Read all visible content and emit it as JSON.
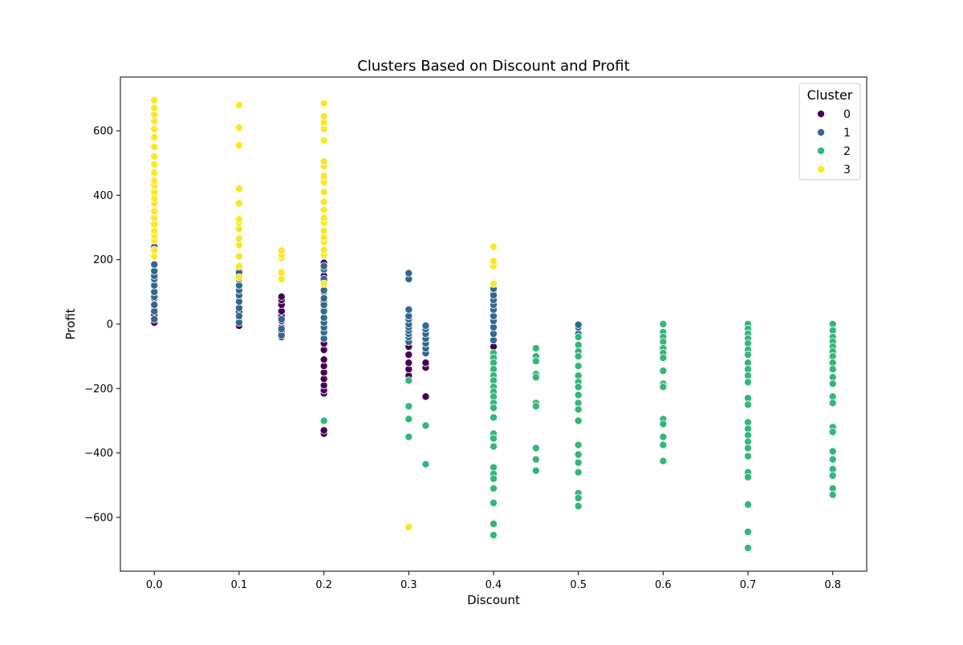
{
  "chart_data": {
    "type": "scatter",
    "title": "Clusters Based on Discount and Profit",
    "xlabel": "Discount",
    "ylabel": "Profit",
    "xlim": [
      -0.04,
      0.84
    ],
    "ylim": [
      -767,
      767
    ],
    "xticks": [
      {
        "value": 0.0,
        "label": "0.0"
      },
      {
        "value": 0.1,
        "label": "0.1"
      },
      {
        "value": 0.2,
        "label": "0.2"
      },
      {
        "value": 0.3,
        "label": "0.3"
      },
      {
        "value": 0.4,
        "label": "0.4"
      },
      {
        "value": 0.5,
        "label": "0.5"
      },
      {
        "value": 0.6,
        "label": "0.6"
      },
      {
        "value": 0.7,
        "label": "0.7"
      },
      {
        "value": 0.8,
        "label": "0.8"
      }
    ],
    "yticks": [
      {
        "value": 600,
        "label": "600"
      },
      {
        "value": 400,
        "label": "400"
      },
      {
        "value": 200,
        "label": "200"
      },
      {
        "value": 0,
        "label": "0"
      },
      {
        "value": -200,
        "label": "−200"
      },
      {
        "value": -400,
        "label": "−400"
      },
      {
        "value": -600,
        "label": "−600"
      }
    ],
    "grid": false,
    "legend": {
      "title": "Cluster",
      "position": "top-right"
    },
    "series": [
      {
        "name": "0",
        "color": "#440154",
        "points": [
          [
            0.0,
            5
          ],
          [
            0.0,
            15
          ],
          [
            0.0,
            30
          ],
          [
            0.0,
            45
          ],
          [
            0.0,
            60
          ],
          [
            0.0,
            80
          ],
          [
            0.0,
            100
          ],
          [
            0.0,
            125
          ],
          [
            0.0,
            140
          ],
          [
            0.1,
            -5
          ],
          [
            0.1,
            5
          ],
          [
            0.1,
            20
          ],
          [
            0.1,
            40
          ],
          [
            0.1,
            70
          ],
          [
            0.1,
            120
          ],
          [
            0.1,
            175
          ],
          [
            0.15,
            -40
          ],
          [
            0.15,
            -25
          ],
          [
            0.15,
            -10
          ],
          [
            0.15,
            10
          ],
          [
            0.15,
            25
          ],
          [
            0.15,
            40
          ],
          [
            0.15,
            60
          ],
          [
            0.15,
            75
          ],
          [
            0.15,
            85
          ],
          [
            0.2,
            -340
          ],
          [
            0.2,
            -330
          ],
          [
            0.2,
            -215
          ],
          [
            0.2,
            -205
          ],
          [
            0.2,
            -190
          ],
          [
            0.2,
            -170
          ],
          [
            0.2,
            -150
          ],
          [
            0.2,
            -130
          ],
          [
            0.2,
            -110
          ],
          [
            0.2,
            -80
          ],
          [
            0.2,
            -60
          ],
          [
            0.2,
            -40
          ],
          [
            0.2,
            -20
          ],
          [
            0.2,
            0
          ],
          [
            0.2,
            20
          ],
          [
            0.2,
            45
          ],
          [
            0.2,
            70
          ],
          [
            0.2,
            100
          ],
          [
            0.2,
            125
          ],
          [
            0.2,
            150
          ],
          [
            0.2,
            175
          ],
          [
            0.2,
            190
          ],
          [
            0.3,
            -160
          ],
          [
            0.3,
            -140
          ],
          [
            0.3,
            -120
          ],
          [
            0.3,
            -95
          ],
          [
            0.3,
            -70
          ],
          [
            0.32,
            -225
          ],
          [
            0.32,
            -135
          ],
          [
            0.32,
            -120
          ],
          [
            0.4,
            -70
          ],
          [
            0.4,
            95
          ]
        ]
      },
      {
        "name": "1",
        "color": "#31688e",
        "points": [
          [
            0.0,
            15
          ],
          [
            0.0,
            40
          ],
          [
            0.0,
            60
          ],
          [
            0.0,
            85
          ],
          [
            0.0,
            100
          ],
          [
            0.0,
            120
          ],
          [
            0.0,
            140
          ],
          [
            0.0,
            150
          ],
          [
            0.0,
            165
          ],
          [
            0.0,
            185
          ],
          [
            0.0,
            240
          ],
          [
            0.1,
            5
          ],
          [
            0.1,
            25
          ],
          [
            0.1,
            50
          ],
          [
            0.1,
            70
          ],
          [
            0.1,
            90
          ],
          [
            0.1,
            105
          ],
          [
            0.1,
            120
          ],
          [
            0.1,
            140
          ],
          [
            0.1,
            160
          ],
          [
            0.1,
            180
          ],
          [
            0.15,
            -35
          ],
          [
            0.15,
            -15
          ],
          [
            0.15,
            15
          ],
          [
            0.2,
            -45
          ],
          [
            0.2,
            -25
          ],
          [
            0.2,
            -10
          ],
          [
            0.2,
            5
          ],
          [
            0.2,
            20
          ],
          [
            0.2,
            40
          ],
          [
            0.2,
            60
          ],
          [
            0.2,
            80
          ],
          [
            0.2,
            105
          ],
          [
            0.2,
            140
          ],
          [
            0.2,
            170
          ],
          [
            0.2,
            180
          ],
          [
            0.3,
            -55
          ],
          [
            0.3,
            -40
          ],
          [
            0.3,
            -30
          ],
          [
            0.3,
            -20
          ],
          [
            0.3,
            -10
          ],
          [
            0.3,
            0
          ],
          [
            0.3,
            15
          ],
          [
            0.3,
            25
          ],
          [
            0.3,
            45
          ],
          [
            0.3,
            140
          ],
          [
            0.3,
            158
          ],
          [
            0.32,
            -90
          ],
          [
            0.32,
            -75
          ],
          [
            0.32,
            -60
          ],
          [
            0.32,
            -45
          ],
          [
            0.32,
            -30
          ],
          [
            0.32,
            -15
          ],
          [
            0.32,
            -5
          ],
          [
            0.4,
            -50
          ],
          [
            0.4,
            -30
          ],
          [
            0.4,
            -10
          ],
          [
            0.4,
            10
          ],
          [
            0.4,
            25
          ],
          [
            0.4,
            45
          ],
          [
            0.4,
            60
          ],
          [
            0.4,
            75
          ],
          [
            0.4,
            90
          ],
          [
            0.4,
            110
          ],
          [
            0.5,
            -30
          ],
          [
            0.5,
            -10
          ],
          [
            0.5,
            -2
          ]
        ]
      },
      {
        "name": "2",
        "color": "#35b779",
        "points": [
          [
            0.2,
            -300
          ],
          [
            0.3,
            -175
          ],
          [
            0.3,
            -255
          ],
          [
            0.3,
            -295
          ],
          [
            0.3,
            -350
          ],
          [
            0.32,
            -315
          ],
          [
            0.32,
            -435
          ],
          [
            0.4,
            -90
          ],
          [
            0.4,
            -105
          ],
          [
            0.4,
            -120
          ],
          [
            0.4,
            -140
          ],
          [
            0.4,
            -160
          ],
          [
            0.4,
            -175
          ],
          [
            0.4,
            -195
          ],
          [
            0.4,
            -210
          ],
          [
            0.4,
            -225
          ],
          [
            0.4,
            -245
          ],
          [
            0.4,
            -260
          ],
          [
            0.4,
            -290
          ],
          [
            0.4,
            -340
          ],
          [
            0.4,
            -355
          ],
          [
            0.4,
            -380
          ],
          [
            0.4,
            -445
          ],
          [
            0.4,
            -465
          ],
          [
            0.4,
            -480
          ],
          [
            0.4,
            -510
          ],
          [
            0.4,
            -555
          ],
          [
            0.4,
            -620
          ],
          [
            0.4,
            -655
          ],
          [
            0.45,
            -75
          ],
          [
            0.45,
            -100
          ],
          [
            0.45,
            -115
          ],
          [
            0.45,
            -155
          ],
          [
            0.45,
            -165
          ],
          [
            0.45,
            -245
          ],
          [
            0.45,
            -255
          ],
          [
            0.45,
            -385
          ],
          [
            0.45,
            -420
          ],
          [
            0.45,
            -455
          ],
          [
            0.5,
            -40
          ],
          [
            0.5,
            -65
          ],
          [
            0.5,
            -85
          ],
          [
            0.5,
            -100
          ],
          [
            0.5,
            -130
          ],
          [
            0.5,
            -160
          ],
          [
            0.5,
            -180
          ],
          [
            0.5,
            -195
          ],
          [
            0.5,
            -220
          ],
          [
            0.5,
            -245
          ],
          [
            0.5,
            -265
          ],
          [
            0.5,
            -300
          ],
          [
            0.5,
            -375
          ],
          [
            0.5,
            -405
          ],
          [
            0.5,
            -430
          ],
          [
            0.5,
            -460
          ],
          [
            0.5,
            -525
          ],
          [
            0.5,
            -540
          ],
          [
            0.5,
            -565
          ],
          [
            0.6,
            0
          ],
          [
            0.6,
            -25
          ],
          [
            0.6,
            -40
          ],
          [
            0.6,
            -55
          ],
          [
            0.6,
            -75
          ],
          [
            0.6,
            -90
          ],
          [
            0.6,
            -105
          ],
          [
            0.6,
            -145
          ],
          [
            0.6,
            -185
          ],
          [
            0.6,
            -195
          ],
          [
            0.6,
            -295
          ],
          [
            0.6,
            -310
          ],
          [
            0.6,
            -350
          ],
          [
            0.6,
            -375
          ],
          [
            0.6,
            -425
          ],
          [
            0.7,
            0
          ],
          [
            0.7,
            -15
          ],
          [
            0.7,
            -30
          ],
          [
            0.7,
            -45
          ],
          [
            0.7,
            -60
          ],
          [
            0.7,
            -80
          ],
          [
            0.7,
            -95
          ],
          [
            0.7,
            -120
          ],
          [
            0.7,
            -140
          ],
          [
            0.7,
            -160
          ],
          [
            0.7,
            -180
          ],
          [
            0.7,
            -230
          ],
          [
            0.7,
            -250
          ],
          [
            0.7,
            -305
          ],
          [
            0.7,
            -325
          ],
          [
            0.7,
            -345
          ],
          [
            0.7,
            -365
          ],
          [
            0.7,
            -385
          ],
          [
            0.7,
            -410
          ],
          [
            0.7,
            -460
          ],
          [
            0.7,
            -475
          ],
          [
            0.7,
            -560
          ],
          [
            0.7,
            -645
          ],
          [
            0.7,
            -695
          ],
          [
            0.8,
            0
          ],
          [
            0.8,
            -20
          ],
          [
            0.8,
            -40
          ],
          [
            0.8,
            -55
          ],
          [
            0.8,
            -70
          ],
          [
            0.8,
            -85
          ],
          [
            0.8,
            -100
          ],
          [
            0.8,
            -120
          ],
          [
            0.8,
            -140
          ],
          [
            0.8,
            -165
          ],
          [
            0.8,
            -185
          ],
          [
            0.8,
            -225
          ],
          [
            0.8,
            -245
          ],
          [
            0.8,
            -320
          ],
          [
            0.8,
            -335
          ],
          [
            0.8,
            -395
          ],
          [
            0.8,
            -420
          ],
          [
            0.8,
            -450
          ],
          [
            0.8,
            -470
          ],
          [
            0.8,
            -510
          ],
          [
            0.8,
            -530
          ]
        ]
      },
      {
        "name": "3",
        "color": "#fde725",
        "points": [
          [
            0.0,
            210
          ],
          [
            0.0,
            230
          ],
          [
            0.0,
            260
          ],
          [
            0.0,
            275
          ],
          [
            0.0,
            290
          ],
          [
            0.0,
            310
          ],
          [
            0.0,
            330
          ],
          [
            0.0,
            350
          ],
          [
            0.0,
            375
          ],
          [
            0.0,
            390
          ],
          [
            0.0,
            410
          ],
          [
            0.0,
            430
          ],
          [
            0.0,
            445
          ],
          [
            0.0,
            470
          ],
          [
            0.0,
            495
          ],
          [
            0.0,
            520
          ],
          [
            0.0,
            550
          ],
          [
            0.0,
            580
          ],
          [
            0.0,
            605
          ],
          [
            0.0,
            630
          ],
          [
            0.0,
            650
          ],
          [
            0.0,
            670
          ],
          [
            0.0,
            695
          ],
          [
            0.1,
            145
          ],
          [
            0.1,
            180
          ],
          [
            0.1,
            210
          ],
          [
            0.1,
            245
          ],
          [
            0.1,
            265
          ],
          [
            0.1,
            295
          ],
          [
            0.1,
            315
          ],
          [
            0.1,
            325
          ],
          [
            0.1,
            375
          ],
          [
            0.1,
            420
          ],
          [
            0.1,
            555
          ],
          [
            0.1,
            610
          ],
          [
            0.1,
            680
          ],
          [
            0.15,
            140
          ],
          [
            0.15,
            160
          ],
          [
            0.15,
            205
          ],
          [
            0.15,
            215
          ],
          [
            0.15,
            228
          ],
          [
            0.2,
            125
          ],
          [
            0.2,
            215
          ],
          [
            0.2,
            230
          ],
          [
            0.2,
            255
          ],
          [
            0.2,
            270
          ],
          [
            0.2,
            290
          ],
          [
            0.2,
            315
          ],
          [
            0.2,
            330
          ],
          [
            0.2,
            355
          ],
          [
            0.2,
            380
          ],
          [
            0.2,
            410
          ],
          [
            0.2,
            440
          ],
          [
            0.2,
            460
          ],
          [
            0.2,
            490
          ],
          [
            0.2,
            505
          ],
          [
            0.2,
            570
          ],
          [
            0.2,
            605
          ],
          [
            0.2,
            625
          ],
          [
            0.2,
            645
          ],
          [
            0.2,
            685
          ],
          [
            0.3,
            -630
          ],
          [
            0.4,
            125
          ],
          [
            0.4,
            180
          ],
          [
            0.4,
            195
          ],
          [
            0.4,
            240
          ]
        ]
      }
    ]
  }
}
